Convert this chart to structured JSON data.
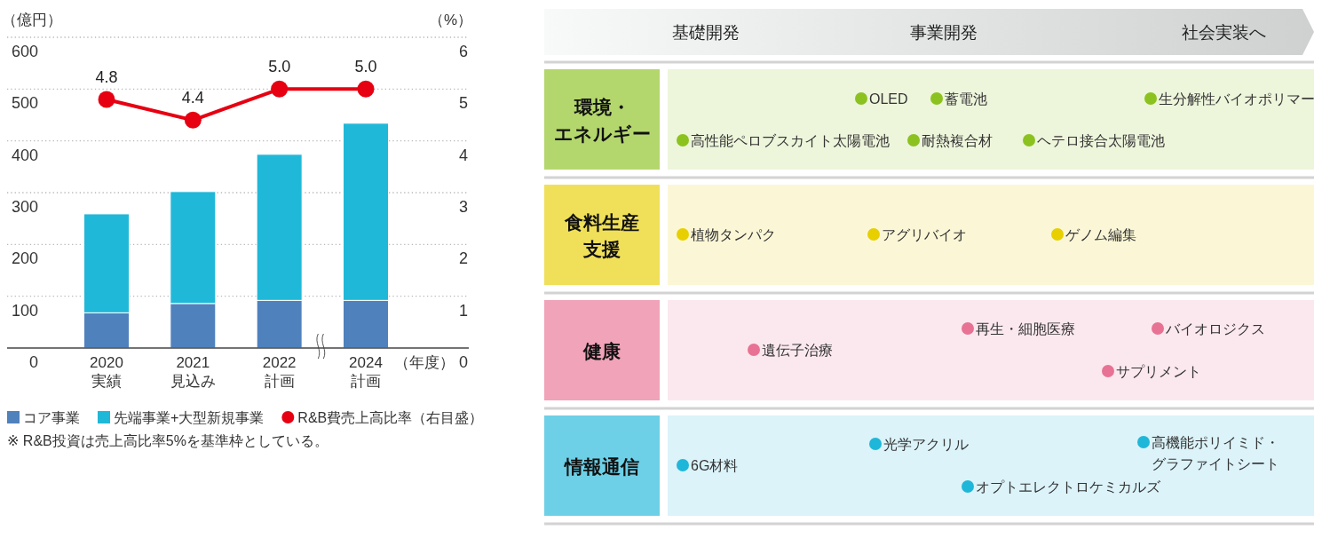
{
  "chart_data": [
    {
      "type": "bar",
      "stacked": true,
      "categories": [
        "2020\n実績",
        "2021\n見込み",
        "2022\n計画",
        "2024\n計画"
      ],
      "series": [
        {
          "name": "コア事業",
          "color": "#4f81bd",
          "values": [
            68,
            86,
            92,
            92
          ]
        },
        {
          "name": "先端事業+大型新規事業",
          "color": "#20b8d8",
          "values": [
            191,
            216,
            282,
            342
          ]
        },
        {
          "name": "R&B費売上高比率（右目盛）",
          "type": "line",
          "axis": "y2",
          "marker": "circle",
          "color": "#e60012",
          "values": [
            4.8,
            4.4,
            5.0,
            5.0
          ],
          "value_labels": [
            "4.8",
            "4.4",
            "5.0",
            "5.0"
          ]
        }
      ],
      "ylabel": "（億円）",
      "y2label": "（%）",
      "xlabel": "（年度）",
      "ylim": [
        0,
        600
      ],
      "yticks": [
        0,
        100,
        200,
        300,
        400,
        500,
        600
      ],
      "y2lim": [
        0,
        6
      ],
      "y2ticks": [
        0,
        1,
        2,
        3,
        4,
        5,
        6
      ],
      "grid": "y",
      "legend": "bottom",
      "annotations": [
        "※ R&B投資は売上高比率5%を基準枠としている。"
      ]
    },
    {
      "type": "other",
      "categories": [
        "基礎開発",
        "事業開発",
        "社会実装へ"
      ],
      "y_categories": [
        "環境・エネルギー",
        "食料生産支援",
        "健康",
        "情報通信"
      ],
      "colors": [
        "#8cc21f",
        "#e8d000",
        "#e87294",
        "#1fb7d9"
      ],
      "annotations": [
        "OLED",
        "蓄電池",
        "生分解性バイオポリマー",
        "高性能ペロブスカイト太陽電池",
        "耐熱複合材",
        "ヘテロ接合太陽電池",
        "植物タンパク",
        "アグリバイオ",
        "ゲノム編集",
        "再生・細胞医療",
        "バイオロジクス",
        "遺伝子治療",
        "サプリメント",
        "光学アクリル",
        "高機能ポリイミド・グラファイトシート",
        "6G材料",
        "オプトエレクトロケミカルズ"
      ]
    }
  ]
}
